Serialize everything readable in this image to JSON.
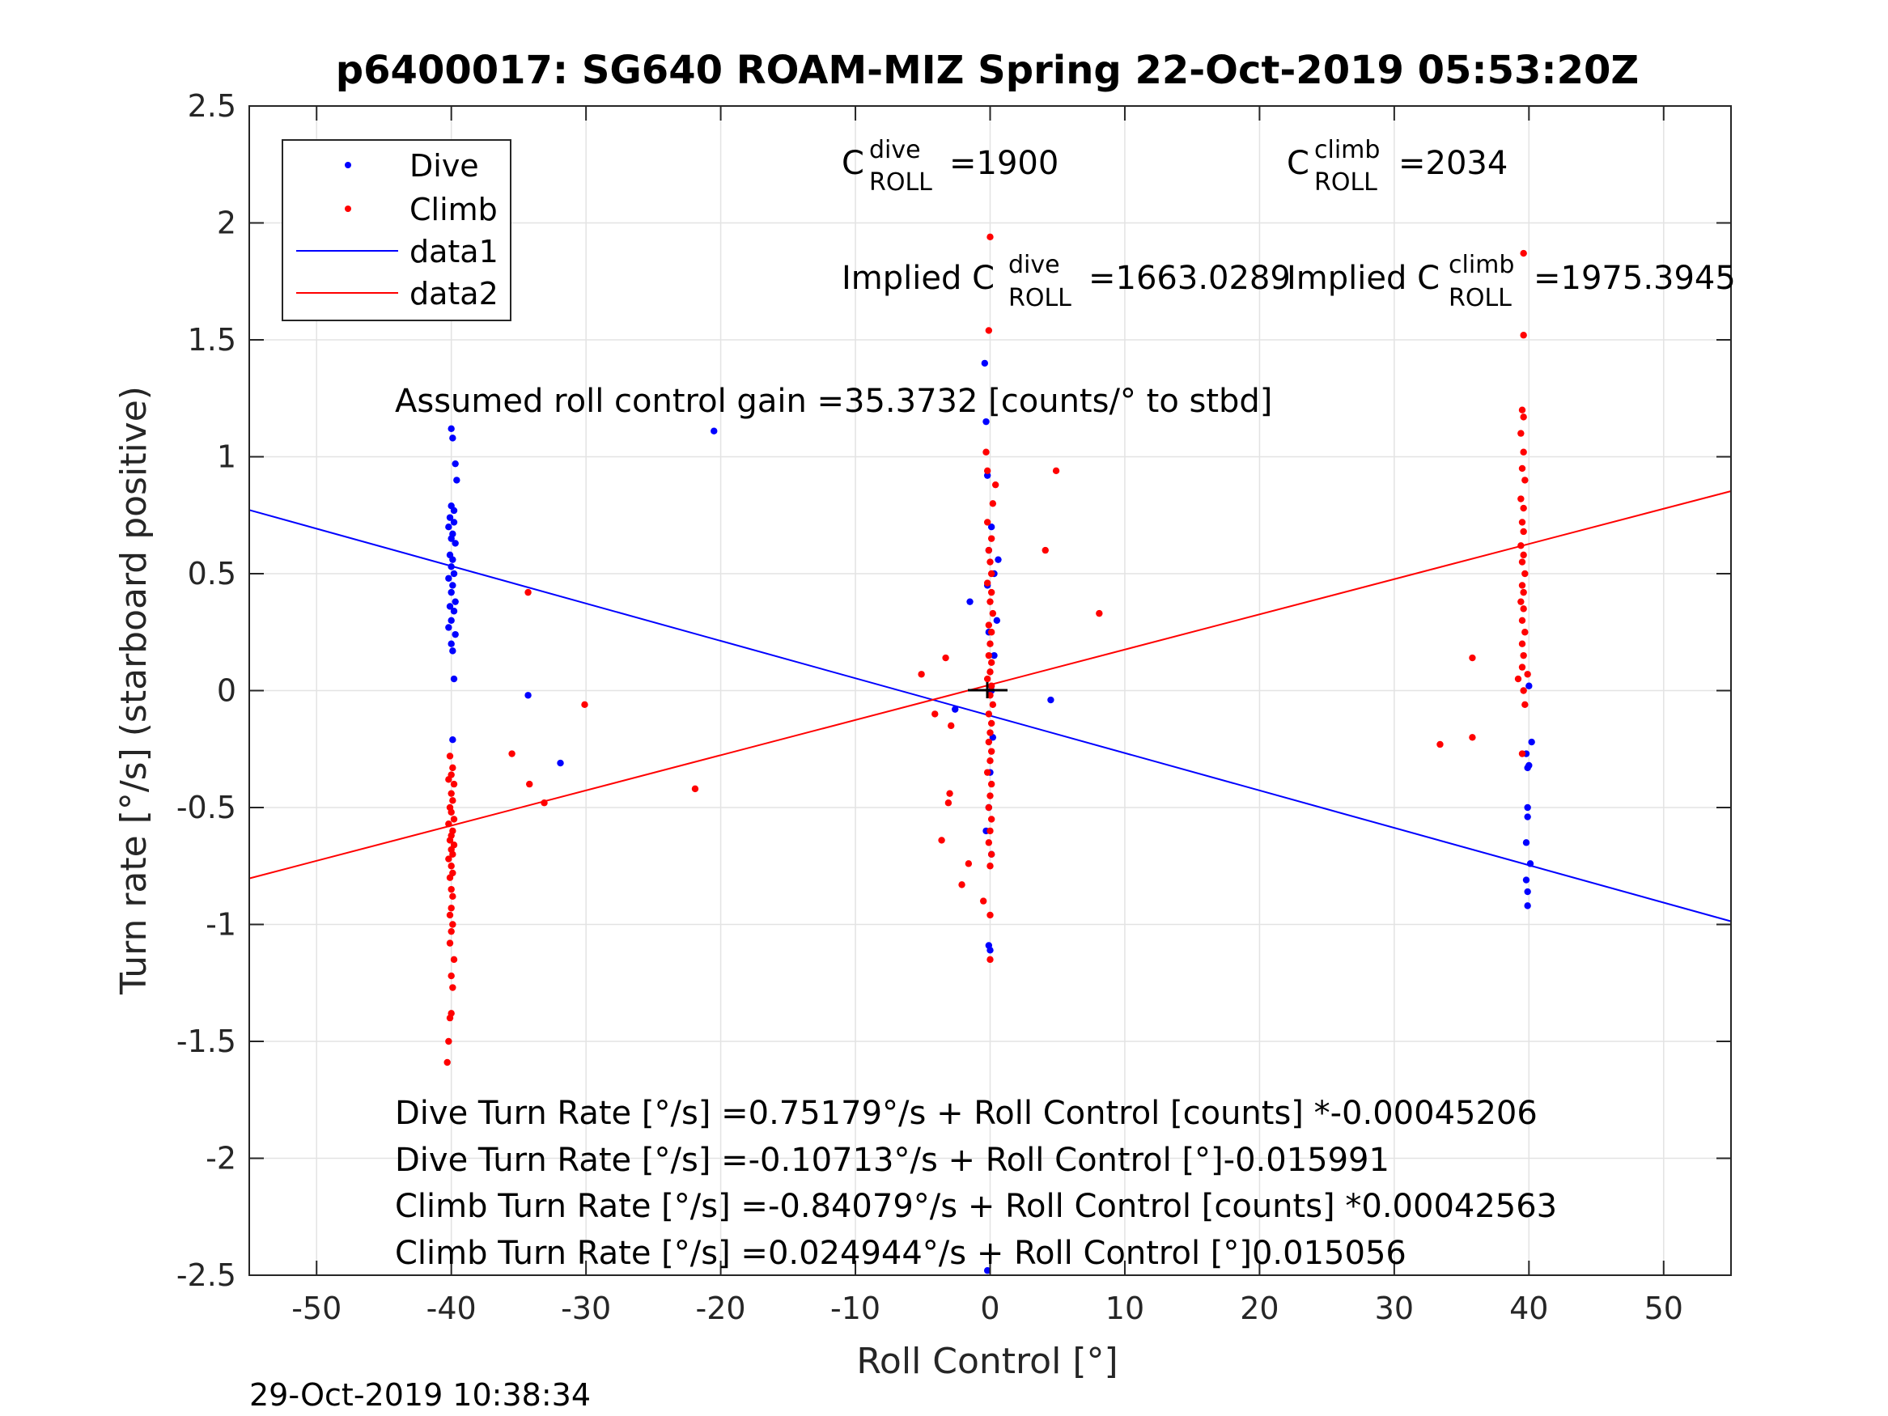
{
  "chart_data": {
    "type": "scatter",
    "title": "p6400017: SG640 ROAM-MIZ Spring 22-Oct-2019 05:53:20Z",
    "xlabel": "Roll Control [°]",
    "ylabel": "Turn rate [°/s] (starboard positive)",
    "xlim": [
      -55,
      55
    ],
    "ylim": [
      -2.5,
      2.5
    ],
    "x_ticks": [
      -50,
      -40,
      -30,
      -20,
      -10,
      0,
      10,
      20,
      30,
      40,
      50
    ],
    "y_ticks": [
      2.5,
      2,
      1.5,
      1,
      0.5,
      0,
      -0.5,
      -1,
      -1.5,
      -2,
      -2.5
    ],
    "x_tick_labels": [
      "-50",
      "-40",
      "-30",
      "-20",
      "-10",
      "0",
      "10",
      "20",
      "30",
      "40",
      "50"
    ],
    "y_tick_labels": [
      "2.5",
      "2",
      "1.5",
      "1",
      "0.5",
      "0",
      "-0.5",
      "-1",
      "-1.5",
      "-2",
      "-2.5"
    ],
    "grid": true,
    "legend_position": "top-left",
    "colors": {
      "dive": "#0000ff",
      "climb": "#ff0000",
      "center_mark": "#000000"
    },
    "series": [
      {
        "name": "Dive",
        "kind": "points",
        "color": "#0000ff",
        "points": [
          [
            -40,
            1.12
          ],
          [
            -39.9,
            1.08
          ],
          [
            -39.7,
            0.97
          ],
          [
            -39.6,
            0.9
          ],
          [
            -40,
            0.79
          ],
          [
            -39.8,
            0.77
          ],
          [
            -40.1,
            0.74
          ],
          [
            -39.8,
            0.72
          ],
          [
            -40.2,
            0.7
          ],
          [
            -39.9,
            0.67
          ],
          [
            -40,
            0.65
          ],
          [
            -39.7,
            0.63
          ],
          [
            -40.1,
            0.58
          ],
          [
            -39.9,
            0.56
          ],
          [
            -40,
            0.53
          ],
          [
            -39.8,
            0.5
          ],
          [
            -40.2,
            0.48
          ],
          [
            -39.9,
            0.45
          ],
          [
            -40,
            0.42
          ],
          [
            -39.7,
            0.38
          ],
          [
            -40.1,
            0.36
          ],
          [
            -39.8,
            0.34
          ],
          [
            -40,
            0.3
          ],
          [
            -40.2,
            0.27
          ],
          [
            -39.7,
            0.24
          ],
          [
            -40,
            0.2
          ],
          [
            -39.9,
            0.17
          ],
          [
            -39.8,
            0.05
          ],
          [
            -39.9,
            -0.21
          ],
          [
            -20.5,
            1.11
          ],
          [
            -34.3,
            -0.02
          ],
          [
            -31.9,
            -0.31
          ],
          [
            4.5,
            -0.04
          ],
          [
            -1.5,
            0.38
          ],
          [
            -2.6,
            -0.08
          ],
          [
            -0.4,
            1.4
          ],
          [
            -0.3,
            1.15
          ],
          [
            -0.2,
            0.92
          ],
          [
            0.1,
            0.7
          ],
          [
            -0.1,
            0.6
          ],
          [
            0.6,
            0.56
          ],
          [
            0.3,
            0.5
          ],
          [
            -0.2,
            0.45
          ],
          [
            0.5,
            0.3
          ],
          [
            -0.1,
            0.25
          ],
          [
            0.3,
            0.15
          ],
          [
            0.1,
            0.0
          ],
          [
            0.2,
            -0.2
          ],
          [
            0.0,
            -0.35
          ],
          [
            -0.1,
            -0.5
          ],
          [
            -0.3,
            -0.6
          ],
          [
            0.1,
            -0.7
          ],
          [
            -0.1,
            -1.09
          ],
          [
            0.0,
            -1.11
          ],
          [
            -0.2,
            -2.48
          ],
          [
            40.0,
            0.02
          ],
          [
            40.2,
            -0.22
          ],
          [
            39.8,
            -0.27
          ],
          [
            40.0,
            -0.32
          ],
          [
            39.9,
            -0.33
          ],
          [
            39.9,
            -0.5
          ],
          [
            39.9,
            -0.54
          ],
          [
            39.8,
            -0.65
          ],
          [
            40.1,
            -0.74
          ],
          [
            39.8,
            -0.81
          ],
          [
            39.9,
            -0.86
          ],
          [
            39.9,
            -0.92
          ]
        ]
      },
      {
        "name": "Climb",
        "kind": "points",
        "color": "#ff0000",
        "points": [
          [
            -40.1,
            -0.28
          ],
          [
            -39.9,
            -0.33
          ],
          [
            -40,
            -0.36
          ],
          [
            -40.2,
            -0.38
          ],
          [
            -39.8,
            -0.4
          ],
          [
            -40,
            -0.44
          ],
          [
            -39.9,
            -0.47
          ],
          [
            -40.1,
            -0.5
          ],
          [
            -40,
            -0.52
          ],
          [
            -39.8,
            -0.55
          ],
          [
            -40.2,
            -0.57
          ],
          [
            -39.9,
            -0.6
          ],
          [
            -40,
            -0.62
          ],
          [
            -40.1,
            -0.64
          ],
          [
            -39.8,
            -0.66
          ],
          [
            -40,
            -0.68
          ],
          [
            -39.9,
            -0.7
          ],
          [
            -40.2,
            -0.72
          ],
          [
            -40,
            -0.75
          ],
          [
            -39.9,
            -0.78
          ],
          [
            -40.1,
            -0.8
          ],
          [
            -40,
            -0.85
          ],
          [
            -39.9,
            -0.88
          ],
          [
            -40,
            -0.93
          ],
          [
            -40.1,
            -0.96
          ],
          [
            -39.9,
            -1.0
          ],
          [
            -40,
            -1.03
          ],
          [
            -40.1,
            -1.08
          ],
          [
            -39.8,
            -1.15
          ],
          [
            -40,
            -1.22
          ],
          [
            -39.9,
            -1.27
          ],
          [
            -40,
            -1.38
          ],
          [
            -40.1,
            -1.4
          ],
          [
            -40.2,
            -1.5
          ],
          [
            -40.3,
            -1.59
          ],
          [
            -34.3,
            0.42
          ],
          [
            -30.1,
            -0.06
          ],
          [
            -35.5,
            -0.27
          ],
          [
            -34.2,
            -0.4
          ],
          [
            -33.1,
            -0.48
          ],
          [
            -21.9,
            -0.42
          ],
          [
            -5.1,
            0.07
          ],
          [
            -3.3,
            0.14
          ],
          [
            -4.1,
            -0.1
          ],
          [
            -2.9,
            -0.15
          ],
          [
            -3.0,
            -0.44
          ],
          [
            -3.1,
            -0.48
          ],
          [
            -3.6,
            -0.64
          ],
          [
            -1.6,
            -0.74
          ],
          [
            -2.1,
            -0.83
          ],
          [
            4.1,
            0.6
          ],
          [
            4.9,
            0.94
          ],
          [
            8.1,
            0.33
          ],
          [
            0,
            1.94
          ],
          [
            -0.1,
            1.54
          ],
          [
            -0.3,
            1.02
          ],
          [
            -0.2,
            0.94
          ],
          [
            0.4,
            0.88
          ],
          [
            0.2,
            0.8
          ],
          [
            -0.2,
            0.72
          ],
          [
            0.1,
            0.65
          ],
          [
            -0.1,
            0.6
          ],
          [
            0.0,
            0.55
          ],
          [
            0.1,
            0.5
          ],
          [
            -0.2,
            0.46
          ],
          [
            0.1,
            0.42
          ],
          [
            0.0,
            0.38
          ],
          [
            0.2,
            0.33
          ],
          [
            -0.1,
            0.28
          ],
          [
            0.1,
            0.25
          ],
          [
            0.0,
            0.2
          ],
          [
            -0.1,
            0.15
          ],
          [
            0.1,
            0.12
          ],
          [
            0.0,
            0.08
          ],
          [
            -0.2,
            0.05
          ],
          [
            0.1,
            0.02
          ],
          [
            0.0,
            -0.02
          ],
          [
            0.2,
            -0.06
          ],
          [
            -0.1,
            -0.1
          ],
          [
            0.1,
            -0.14
          ],
          [
            0.0,
            -0.18
          ],
          [
            -0.1,
            -0.22
          ],
          [
            0.1,
            -0.26
          ],
          [
            0.0,
            -0.3
          ],
          [
            -0.2,
            -0.35
          ],
          [
            0.1,
            -0.4
          ],
          [
            0.0,
            -0.45
          ],
          [
            -0.1,
            -0.5
          ],
          [
            0.1,
            -0.55
          ],
          [
            0.0,
            -0.6
          ],
          [
            -0.1,
            -0.65
          ],
          [
            0.1,
            -0.7
          ],
          [
            0.0,
            -0.75
          ],
          [
            -0.5,
            -0.9
          ],
          [
            0.0,
            -0.96
          ],
          [
            0.0,
            -1.15
          ],
          [
            39.6,
            1.87
          ],
          [
            39.6,
            1.52
          ],
          [
            39.5,
            1.2
          ],
          [
            39.6,
            1.17
          ],
          [
            39.4,
            1.1
          ],
          [
            39.6,
            1.02
          ],
          [
            39.5,
            0.95
          ],
          [
            39.7,
            0.9
          ],
          [
            39.4,
            0.82
          ],
          [
            39.6,
            0.78
          ],
          [
            39.5,
            0.72
          ],
          [
            39.6,
            0.68
          ],
          [
            39.4,
            0.62
          ],
          [
            39.6,
            0.58
          ],
          [
            39.5,
            0.55
          ],
          [
            39.7,
            0.5
          ],
          [
            39.5,
            0.45
          ],
          [
            39.6,
            0.42
          ],
          [
            39.4,
            0.38
          ],
          [
            39.6,
            0.35
          ],
          [
            39.5,
            0.3
          ],
          [
            39.7,
            0.25
          ],
          [
            39.5,
            0.2
          ],
          [
            39.6,
            0.15
          ],
          [
            39.5,
            0.1
          ],
          [
            39.2,
            0.05
          ],
          [
            39.6,
            0.0
          ],
          [
            39.9,
            0.07
          ],
          [
            39.7,
            -0.06
          ],
          [
            35.8,
            0.14
          ],
          [
            33.4,
            -0.23
          ],
          [
            35.8,
            -0.2
          ],
          [
            39.5,
            -0.27
          ]
        ]
      },
      {
        "name": "data1",
        "kind": "line",
        "color": "#0000ff",
        "intercept": -0.10713,
        "slope": -0.015991
      },
      {
        "name": "data2",
        "kind": "line",
        "color": "#ff0000",
        "intercept": 0.024944,
        "slope": 0.015056
      }
    ],
    "legend": [
      "Dive",
      "Climb",
      "data1",
      "data2"
    ],
    "annotations": {
      "c_dive": {
        "base": "C",
        "sup": "dive",
        "sub": "ROLL",
        "value": "=1900"
      },
      "c_climb": {
        "base": "C",
        "sup": "climb",
        "sub": "ROLL",
        "value": "=2034"
      },
      "implied_dive": {
        "prefix": "Implied C",
        "sup": "dive",
        "sub": "ROLL",
        "value": "=1663.0289"
      },
      "implied_climb": {
        "prefix": "Implied C",
        "sup": "climb",
        "sub": "ROLL",
        "value": "=1975.3945"
      },
      "gain": "Assumed roll control gain =35.3732 [counts/° to stbd]",
      "eq1": "Dive Turn Rate [°/s] =0.75179°/s + Roll Control [counts] *-0.00045206",
      "eq2": "Dive Turn Rate [°/s] =-0.10713°/s + Roll Control [°]-0.015991",
      "eq3": "Climb Turn Rate [°/s] =-0.84079°/s + Roll Control [counts] *0.00042563",
      "eq4": "Climb Turn Rate [°/s] =0.024944°/s + Roll Control [°]0.015056"
    },
    "timestamp": "29-Oct-2019 10:38:34"
  }
}
